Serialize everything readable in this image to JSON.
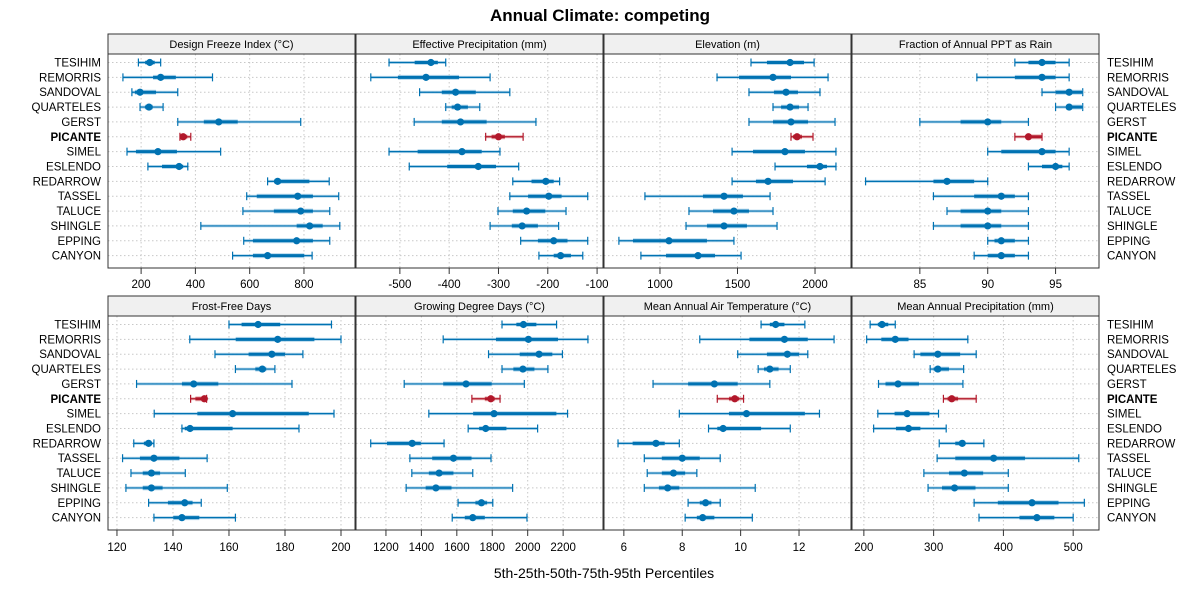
{
  "chart_data": {
    "type": "dot-interval",
    "title": "Annual Climate: competing",
    "xlabel": "5th-25th-50th-75th-95th Percentiles",
    "highlight_series": "PICANTE",
    "colors": {
      "default": "#0072B2",
      "default_light": "#8EC3E3",
      "highlight": "#B2182B",
      "highlight_light": "#E08A8A"
    },
    "grid": true,
    "categories": [
      "TESIHIM",
      "REMORRIS",
      "SANDOVAL",
      "QUARTELES",
      "GERST",
      "PICANTE",
      "SIMEL",
      "ESLENDO",
      "REDARROW",
      "TASSEL",
      "TALUCE",
      "SHINGLE",
      "EPPING",
      "CANYON"
    ],
    "percentile_order": [
      "p5",
      "p25",
      "p50",
      "p75",
      "p95"
    ],
    "panels": [
      {
        "title": "Design Freeze Index (°C)",
        "xlim": [
          78,
          988
        ],
        "ticks": [
          200,
          400,
          600,
          800
        ],
        "tick_labels": [
          "200",
          "400",
          "600",
          "800"
        ],
        "values": [
          [
            190,
            215,
            232,
            250,
            272
          ],
          [
            133,
            244,
            272,
            328,
            463
          ],
          [
            166,
            177,
            196,
            255,
            335
          ],
          [
            196,
            214,
            229,
            243,
            281
          ],
          [
            335,
            431,
            486,
            556,
            788
          ],
          [
            343,
            350,
            355,
            370,
            383
          ],
          [
            148,
            181,
            262,
            332,
            493
          ],
          [
            225,
            277,
            340,
            355,
            372
          ],
          [
            666,
            690,
            703,
            820,
            893
          ],
          [
            589,
            626,
            777,
            833,
            928
          ],
          [
            575,
            689,
            788,
            833,
            895
          ],
          [
            420,
            773,
            821,
            869,
            932
          ],
          [
            578,
            612,
            773,
            833,
            895
          ],
          [
            537,
            612,
            666,
            801,
            830
          ]
        ]
      },
      {
        "title": "Effective Precipitation (mm)",
        "xlim": [
          -589,
          -88
        ],
        "ticks": [
          -500,
          -400,
          -300,
          -200,
          -100
        ],
        "tick_labels": [
          "-500",
          "-400",
          "-300",
          "-200",
          "-100"
        ],
        "values": [
          [
            -522,
            -470,
            -437,
            -423,
            -407
          ],
          [
            -559,
            -504,
            -447,
            -380,
            -317
          ],
          [
            -460,
            -415,
            -387,
            -346,
            -277
          ],
          [
            -407,
            -395,
            -383,
            -362,
            -338
          ],
          [
            -471,
            -415,
            -377,
            -324,
            -224
          ],
          [
            -326,
            -314,
            -300,
            -287,
            -250
          ],
          [
            -522,
            -464,
            -374,
            -334,
            -297
          ],
          [
            -481,
            -404,
            -341,
            -305,
            -259
          ],
          [
            -271,
            -233,
            -204,
            -188,
            -176
          ],
          [
            -277,
            -240,
            -198,
            -172,
            -119
          ],
          [
            -301,
            -271,
            -243,
            -205,
            -163
          ],
          [
            -317,
            -273,
            -252,
            -220,
            -178
          ],
          [
            -255,
            -220,
            -188,
            -160,
            -119
          ],
          [
            -218,
            -188,
            -174,
            -153,
            -129
          ]
        ]
      },
      {
        "title": "Elevation (m)",
        "xlim": [
          639,
          2232
        ],
        "ticks": [
          1000,
          1500,
          2000
        ],
        "tick_labels": [
          "1000",
          "1500",
          "2000"
        ],
        "values": [
          [
            1587,
            1690,
            1839,
            1929,
            1994
          ],
          [
            1368,
            1510,
            1729,
            1845,
            2084
          ],
          [
            1574,
            1735,
            1813,
            1890,
            2032
          ],
          [
            1729,
            1781,
            1839,
            1897,
            1955
          ],
          [
            1574,
            1729,
            1845,
            1955,
            2129
          ],
          [
            1845,
            1858,
            1884,
            1916,
            1987
          ],
          [
            1465,
            1600,
            1806,
            1935,
            2135
          ],
          [
            1742,
            1948,
            2032,
            2077,
            2135
          ],
          [
            1465,
            1619,
            1697,
            1858,
            2065
          ],
          [
            903,
            1277,
            1413,
            1535,
            1710
          ],
          [
            1187,
            1342,
            1477,
            1574,
            1729
          ],
          [
            1168,
            1303,
            1413,
            1561,
            1755
          ],
          [
            735,
            826,
            1058,
            1303,
            1477
          ],
          [
            877,
            1039,
            1245,
            1355,
            1523
          ]
        ]
      },
      {
        "title": "Fraction of Annual PPT as Rain",
        "xlim": [
          80,
          98.2
        ],
        "ticks": [
          85,
          90,
          95
        ],
        "tick_labels": [
          "85",
          "90",
          "95"
        ],
        "values": [
          [
            92,
            93,
            94,
            95,
            96
          ],
          [
            89.2,
            92,
            94,
            95,
            96
          ],
          [
            94,
            95,
            96,
            97,
            97
          ],
          [
            95,
            96,
            96,
            97,
            97
          ],
          [
            85,
            88,
            90,
            91,
            93
          ],
          [
            92,
            93,
            93,
            94,
            94
          ],
          [
            90,
            91,
            94,
            95,
            96
          ],
          [
            93,
            94,
            95,
            95.5,
            96
          ],
          [
            81,
            86,
            87,
            89,
            90
          ],
          [
            86,
            89,
            91,
            92,
            93
          ],
          [
            87,
            88,
            90,
            91,
            93
          ],
          [
            86,
            88,
            90,
            91,
            93
          ],
          [
            90,
            90.5,
            91,
            92,
            93
          ],
          [
            89,
            90,
            91,
            92,
            93
          ]
        ]
      },
      {
        "title": "Frost-Free Days",
        "xlim": [
          116.8,
          205
        ],
        "ticks": [
          120,
          140,
          160,
          180,
          200
        ],
        "tick_labels": [
          "120",
          "140",
          "160",
          "180",
          "200"
        ],
        "values": [
          [
            160,
            164.5,
            170.4,
            178.3,
            196.6
          ],
          [
            146,
            162.4,
            177.4,
            190.5,
            200
          ],
          [
            155,
            167,
            175.3,
            180,
            186.4
          ],
          [
            162.3,
            169.4,
            171.9,
            173.3,
            176.4
          ],
          [
            127,
            143.2,
            147.4,
            156.2,
            182.5
          ],
          [
            146.3,
            148,
            151.2,
            151.5,
            152
          ],
          [
            133.3,
            148.7,
            161.3,
            188.5,
            197.5
          ],
          [
            143.2,
            144.2,
            146.1,
            161.3,
            185
          ],
          [
            126,
            129.6,
            131.3,
            131.8,
            133.2
          ],
          [
            122,
            128.2,
            133.2,
            142.3,
            152.2
          ],
          [
            125,
            129.2,
            132.3,
            135.4,
            144.4
          ],
          [
            123.2,
            129.2,
            132.3,
            136.3,
            159.4
          ],
          [
            131.3,
            138.2,
            144.2,
            147,
            150.1
          ],
          [
            133.2,
            140.1,
            143.2,
            149.4,
            162.3
          ]
        ]
      },
      {
        "title": "Growing Degree Days (°C)",
        "xlim": [
          1031,
          2425
        ],
        "ticks": [
          1200,
          1400,
          1600,
          1800,
          2000,
          2200
        ],
        "tick_labels": [
          "1200",
          "1400",
          "1600",
          "1800",
          "2000",
          "2200"
        ],
        "values": [
          [
            1855,
            1936,
            1976,
            2049,
            2163
          ],
          [
            1523,
            1821,
            2004,
            2171,
            2340
          ],
          [
            1779,
            1955,
            2064,
            2139,
            2196
          ],
          [
            1855,
            1919,
            1973,
            2038,
            2114
          ],
          [
            1303,
            1523,
            1652,
            1797,
            1981
          ],
          [
            1685,
            1758,
            1792,
            1814,
            1844
          ],
          [
            1442,
            1692,
            1810,
            2162,
            2225
          ],
          [
            1664,
            1726,
            1763,
            1880,
            2056
          ],
          [
            1114,
            1206,
            1348,
            1397,
            1528
          ],
          [
            1335,
            1461,
            1581,
            1683,
            1793
          ],
          [
            1346,
            1442,
            1500,
            1581,
            1690
          ],
          [
            1314,
            1424,
            1482,
            1570,
            1915
          ],
          [
            1607,
            1705,
            1739,
            1771,
            1803
          ],
          [
            1574,
            1645,
            1690,
            1758,
            1996
          ]
        ]
      },
      {
        "title": "Mean Annual Air Temperature (°C)",
        "xlim": [
          5.32,
          13.78
        ],
        "ticks": [
          6,
          8,
          10,
          12
        ],
        "tick_labels": [
          "6",
          "8",
          "10",
          "12"
        ],
        "values": [
          [
            10.7,
            11.0,
            11.2,
            11.5,
            12.2
          ],
          [
            8.6,
            10.3,
            11.5,
            12.3,
            13.2
          ],
          [
            9.9,
            10.9,
            11.6,
            12.0,
            12.3
          ],
          [
            10.6,
            10.8,
            11.0,
            11.3,
            11.7
          ],
          [
            7.0,
            8.2,
            9.1,
            9.9,
            11.0
          ],
          [
            9.2,
            9.6,
            9.8,
            9.95,
            10.1
          ],
          [
            7.9,
            9.6,
            10.2,
            12.2,
            12.7
          ],
          [
            8.9,
            9.2,
            9.4,
            10.7,
            11.7
          ],
          [
            5.8,
            6.3,
            7.1,
            7.4,
            7.9
          ],
          [
            6.7,
            7.3,
            8.0,
            8.6,
            9.3
          ],
          [
            6.8,
            7.3,
            7.7,
            8.1,
            8.5
          ],
          [
            6.7,
            7.2,
            7.5,
            7.9,
            10.5
          ],
          [
            8.2,
            8.6,
            8.8,
            9.0,
            9.3
          ],
          [
            8.1,
            8.5,
            8.7,
            9.1,
            10.4
          ]
        ]
      },
      {
        "title": "Mean Annual Precipitation (mm)",
        "xlim": [
          183,
          537
        ],
        "ticks": [
          200,
          300,
          400,
          500
        ],
        "tick_labels": [
          "200",
          "300",
          "400",
          "500"
        ],
        "values": [
          [
            209,
            220,
            226,
            235,
            245
          ],
          [
            204,
            225,
            245,
            264,
            349
          ],
          [
            272,
            281,
            306,
            338,
            361
          ],
          [
            295,
            300,
            306,
            322,
            343
          ],
          [
            221,
            231,
            249,
            279,
            342
          ],
          [
            314,
            320,
            326,
            335,
            361
          ],
          [
            220,
            244,
            262,
            294,
            307
          ],
          [
            214,
            246,
            264,
            281,
            318
          ],
          [
            308,
            331,
            341,
            345,
            372
          ],
          [
            305,
            331,
            386,
            431,
            508
          ],
          [
            286,
            322,
            344,
            371,
            407
          ],
          [
            292,
            312,
            330,
            360,
            407
          ],
          [
            358,
            392,
            441,
            479,
            516
          ],
          [
            365,
            423,
            448,
            473,
            500
          ]
        ]
      }
    ]
  }
}
